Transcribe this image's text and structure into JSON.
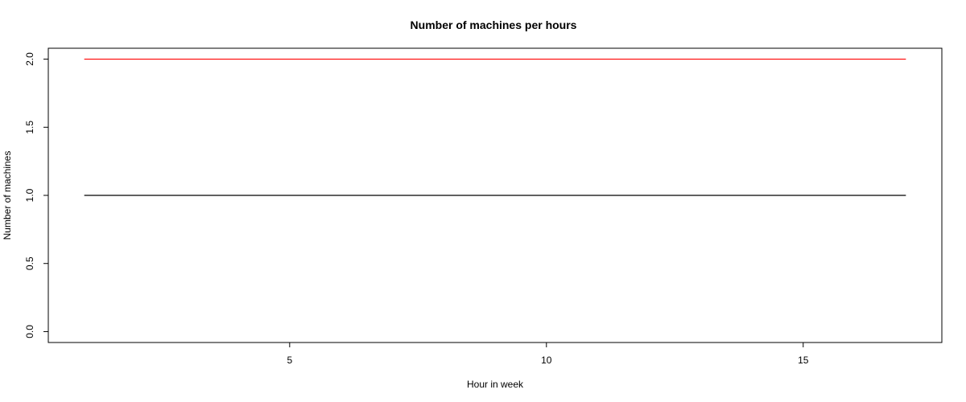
{
  "chart_data": {
    "type": "line",
    "title": "Number of machines per hours",
    "xlabel": "Hour in week",
    "ylabel": "Number of machines",
    "xlim": [
      0.3,
      17.7
    ],
    "ylim": [
      -0.08,
      2.08
    ],
    "x_ticks": [
      5,
      10,
      15
    ],
    "x_tick_labels": [
      "5",
      "10",
      "15"
    ],
    "y_ticks": [
      0.0,
      0.5,
      1.0,
      1.5,
      2.0
    ],
    "y_tick_labels": [
      "0.0",
      "0.5",
      "1.0",
      "1.5",
      "2.0"
    ],
    "grid": false,
    "legend": "none",
    "series": [
      {
        "color": "#ff0000",
        "x": [
          1,
          2,
          3,
          4,
          5,
          6,
          7,
          8,
          9,
          10,
          11,
          12,
          13,
          14,
          15,
          16,
          17
        ],
        "y": [
          2,
          2,
          2,
          2,
          2,
          2,
          2,
          2,
          2,
          2,
          2,
          2,
          2,
          2,
          2,
          2,
          2
        ]
      },
      {
        "color": "#000000",
        "x": [
          1,
          2,
          3,
          4,
          5,
          6,
          7,
          8,
          9,
          10,
          11,
          12,
          13,
          14,
          15,
          16,
          17
        ],
        "y": [
          1,
          1,
          1,
          1,
          1,
          1,
          1,
          1,
          1,
          1,
          1,
          1,
          1,
          1,
          1,
          1,
          1
        ]
      }
    ]
  }
}
